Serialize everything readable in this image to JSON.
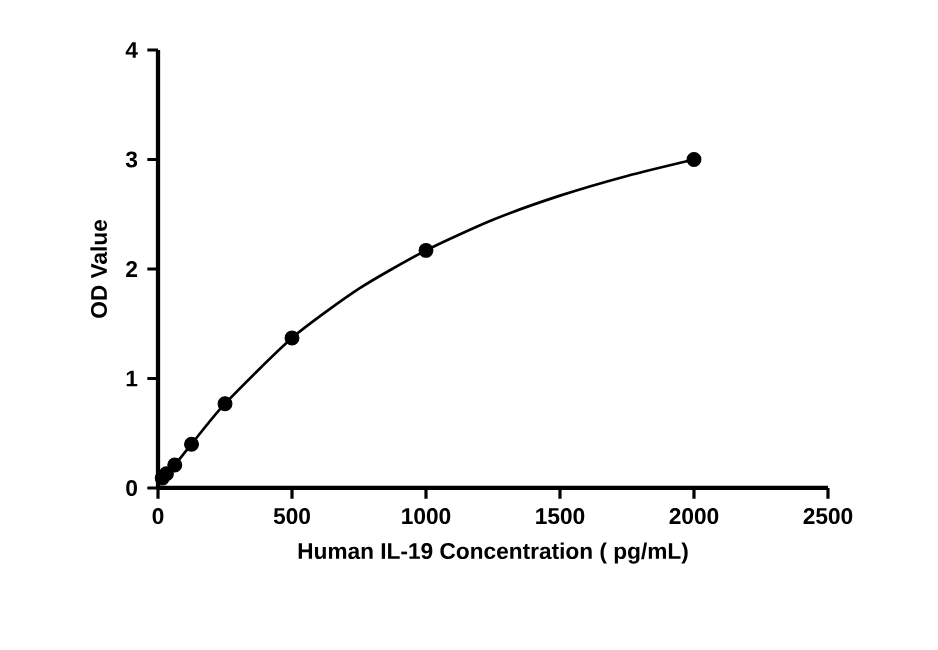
{
  "chart_data": {
    "type": "scatter",
    "xlabel": "Human IL-19 Concentration ( pg/mL)",
    "ylabel": "OD Value",
    "xlim": [
      0,
      2500
    ],
    "ylim": [
      0,
      4
    ],
    "xticks": [
      0,
      500,
      1000,
      1500,
      2000,
      2500
    ],
    "yticks": [
      0,
      1,
      2,
      3,
      4
    ],
    "series": [
      {
        "marker": "circle",
        "color": "#000000",
        "x": [
          15.625,
          31.25,
          62.5,
          125,
          250,
          500,
          1000,
          2000
        ],
        "values": [
          0.09,
          0.13,
          0.21,
          0.4,
          0.77,
          1.37,
          2.17,
          3.0
        ]
      },
      {
        "type": "line",
        "marker": "none",
        "line_style": "solid",
        "color": "#000000",
        "x": [
          0,
          15.625,
          31.25,
          62.5,
          125,
          250,
          500,
          750,
          1000,
          1250,
          1500,
          1750,
          2000
        ],
        "values": [
          0.05,
          0.09,
          0.13,
          0.21,
          0.4,
          0.77,
          1.37,
          1.82,
          2.17,
          2.45,
          2.67,
          2.85,
          3.0
        ]
      }
    ]
  }
}
